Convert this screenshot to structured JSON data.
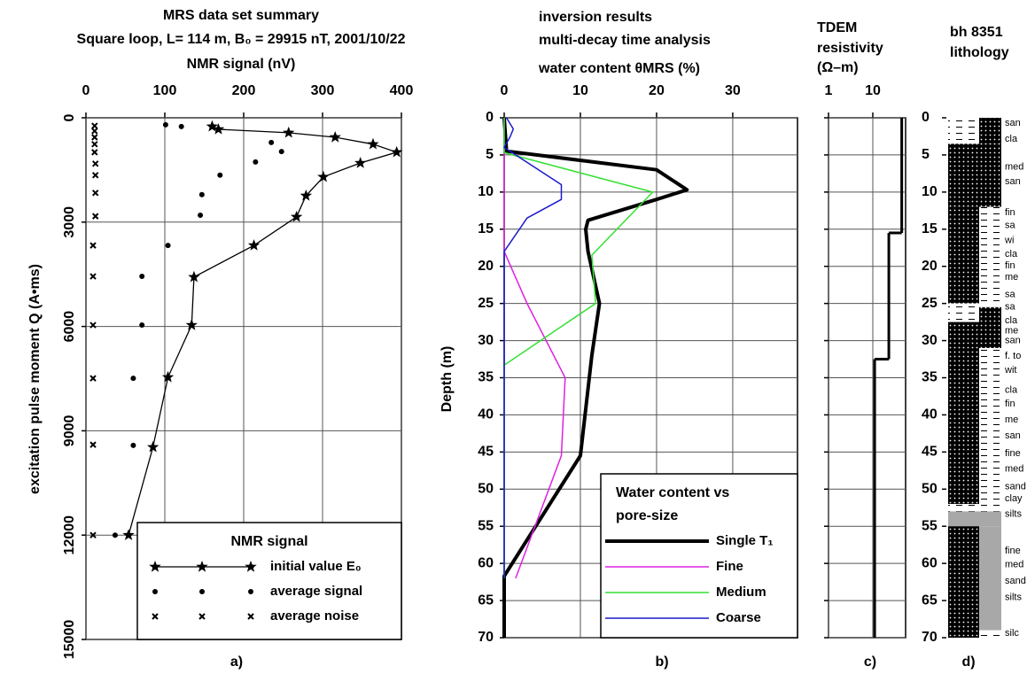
{
  "chart_data": [
    {
      "type": "scatter",
      "title": "MRS data set summary",
      "subtitle": "Square loop, L= 114 m, B₀ = 29915 nT, 2001/10/22",
      "xlabel": "NMR signal (nV)",
      "ylabel": "excitation pulse moment Q (A•ms)",
      "panel": "a)",
      "xlim": [
        0,
        400
      ],
      "xticks": [
        0,
        100,
        200,
        300,
        400
      ],
      "ylim": [
        0,
        15000
      ],
      "yticks": [
        0,
        3000,
        6000,
        9000,
        12000,
        15000
      ],
      "grid": true,
      "legend": "lower right",
      "legend_title": "NMR signal",
      "series": [
        {
          "name": "initial value E₀",
          "color": "#000000",
          "marker": "star",
          "line": true,
          "q": [
            250,
            330,
            430,
            560,
            760,
            990,
            1300,
            1700,
            2240,
            2850,
            3670,
            4580,
            5960,
            7460,
            9470,
            12000
          ],
          "values": [
            160,
            168,
            257,
            316,
            364,
            394,
            348,
            301,
            279,
            267,
            213,
            137,
            134,
            104,
            85,
            54
          ]
        },
        {
          "name": "average signal",
          "color": "#000000",
          "marker": "dot",
          "line": false,
          "q": [
            200,
            250,
            710,
            970,
            1270,
            1650,
            2210,
            2800,
            3670,
            4560,
            5960,
            7490,
            9420,
            12000
          ],
          "values": [
            101,
            121,
            235,
            248,
            215,
            170,
            147,
            145,
            104,
            71,
            71,
            60,
            60,
            37
          ]
        },
        {
          "name": "average noise",
          "color": "#000000",
          "marker": "x",
          "line": false,
          "q": [
            230,
            380,
            560,
            760,
            990,
            1320,
            1650,
            2160,
            2830,
            3670,
            4560,
            5960,
            7490,
            9400,
            12000
          ],
          "values": [
            11,
            11,
            11,
            11,
            11,
            12,
            12,
            12,
            12,
            9,
            9,
            9,
            9,
            9,
            9
          ]
        }
      ]
    },
    {
      "type": "line",
      "title": "inversion results",
      "subtitle": "multi-decay time analysis",
      "xlabel": "water content θMRS (%)",
      "ylabel": "Depth (m)",
      "panel": "b)",
      "xlim": [
        0,
        38.5
      ],
      "xticks": [
        0,
        10,
        20,
        30
      ],
      "ylim": [
        0,
        70
      ],
      "yticks": [
        0,
        5,
        10,
        15,
        20,
        25,
        30,
        35,
        40,
        45,
        50,
        55,
        60,
        65,
        70
      ],
      "grid": true,
      "legend": "lower right",
      "legend_title": [
        "Water content vs",
        "pore-size"
      ],
      "series": [
        {
          "name": "Single T₁",
          "color": "#000000",
          "width": 4,
          "depth": [
            0,
            4.5,
            7,
            9.7,
            11,
            13.8,
            15,
            18,
            25,
            32,
            45.5,
            61.7,
            70
          ],
          "values": [
            0,
            0.3,
            20,
            24,
            20,
            11,
            10.7,
            11,
            12.5,
            11.5,
            10,
            0,
            0
          ]
        },
        {
          "name": "Fine",
          "color": "#e020e0",
          "width": 1.5,
          "depth": [
            0,
            18,
            25,
            35,
            45.5,
            62
          ],
          "values": [
            0,
            0,
            3,
            8,
            7.5,
            1.5
          ]
        },
        {
          "name": "Medium",
          "color": "#33e033",
          "width": 1.5,
          "depth": [
            0,
            4.7,
            10,
            18.5,
            25,
            33.3,
            62
          ],
          "values": [
            0,
            0,
            19.5,
            11.5,
            12,
            0,
            0
          ]
        },
        {
          "name": "Coarse",
          "color": "#1a1acc",
          "width": 1.5,
          "depth": [
            0,
            1.5,
            2.5,
            4,
            9,
            11,
            13.5,
            18,
            62
          ],
          "values": [
            0.3,
            1.2,
            0.8,
            0,
            7.5,
            7.5,
            3,
            0,
            0
          ]
        }
      ]
    },
    {
      "type": "step",
      "title": "TDEM",
      "subtitle": "resistivity",
      "xlabel": "(Ω–m)",
      "panel": "c)",
      "xscale": "log",
      "xlim": [
        1,
        55
      ],
      "xticks": [
        1,
        10
      ],
      "ylim": [
        0,
        70
      ],
      "yticks": [
        0,
        5,
        10,
        15,
        20,
        25,
        30,
        35,
        40,
        45,
        50,
        55,
        60,
        65,
        70
      ],
      "grid": true,
      "color": "#000000",
      "top": [
        0,
        15.5,
        32.5
      ],
      "values": [
        45,
        23,
        11
      ]
    },
    {
      "type": "lithology",
      "title": "bh 8351",
      "subtitle": "lithology",
      "panel": "d)",
      "ylim": [
        0,
        70
      ],
      "yticks": [
        0,
        5,
        10,
        15,
        20,
        25,
        30,
        35,
        40,
        45,
        50,
        55,
        60,
        65,
        70
      ],
      "layers": [
        {
          "top": 0,
          "bottom": 3.5,
          "kind": "clay",
          "side": "left"
        },
        {
          "top": 0,
          "bottom": 3.5,
          "kind": "sand",
          "side": "right"
        },
        {
          "top": 3.5,
          "bottom": 12,
          "kind": "sand",
          "side": "full"
        },
        {
          "top": 12,
          "bottom": 25,
          "kind": "sand",
          "side": "left"
        },
        {
          "top": 12,
          "bottom": 25,
          "kind": "clay",
          "side": "right"
        },
        {
          "top": 25,
          "bottom": 27.5,
          "kind": "clay",
          "side": "left"
        },
        {
          "top": 25.5,
          "bottom": 28,
          "kind": "sand",
          "side": "right"
        },
        {
          "top": 27.5,
          "bottom": 31,
          "kind": "sand",
          "side": "full"
        },
        {
          "top": 31,
          "bottom": 52,
          "kind": "sand",
          "side": "left"
        },
        {
          "top": 31,
          "bottom": 52,
          "kind": "clay",
          "side": "right"
        },
        {
          "top": 52,
          "bottom": 53,
          "kind": "clay",
          "side": "full"
        },
        {
          "top": 53,
          "bottom": 55,
          "kind": "silt",
          "side": "full"
        },
        {
          "top": 55,
          "bottom": 70,
          "kind": "sand",
          "side": "left"
        },
        {
          "top": 55,
          "bottom": 69,
          "kind": "silt",
          "side": "right"
        },
        {
          "top": 69,
          "bottom": 70,
          "kind": "clay",
          "side": "right"
        }
      ],
      "labels": [
        {
          "text": "san",
          "depth": 0.7
        },
        {
          "text": "cla",
          "depth": 2.9
        },
        {
          "text": "med",
          "depth": 6.6
        },
        {
          "text": "san",
          "depth": 8.6
        },
        {
          "text": "fin",
          "depth": 12.8
        },
        {
          "text": "sa",
          "depth": 14.5
        },
        {
          "text": "wi",
          "depth": 16.5
        },
        {
          "text": "cla",
          "depth": 18.4
        },
        {
          "text": "fin",
          "depth": 19.9
        },
        {
          "text": "me",
          "depth": 21.5
        },
        {
          "text": "sa",
          "depth": 23.8
        },
        {
          "text": "sa",
          "depth": 25.5
        },
        {
          "text": "cla",
          "depth": 27.3
        },
        {
          "text": "me",
          "depth": 28.7
        },
        {
          "text": "san",
          "depth": 30
        },
        {
          "text": "f. to",
          "depth": 32.1
        },
        {
          "text": "wit",
          "depth": 34
        },
        {
          "text": "cla",
          "depth": 36.7
        },
        {
          "text": "fin",
          "depth": 38.5
        },
        {
          "text": "me",
          "depth": 40.7
        },
        {
          "text": "san",
          "depth": 42.8
        },
        {
          "text": "fine",
          "depth": 45.2
        },
        {
          "text": "med",
          "depth": 47.3
        },
        {
          "text": "sand",
          "depth": 49.7
        },
        {
          "text": "clay",
          "depth": 51.3
        },
        {
          "text": "silts",
          "depth": 53.4
        },
        {
          "text": "fine",
          "depth": 58.3
        },
        {
          "text": "med",
          "depth": 60.2
        },
        {
          "text": "sand",
          "depth": 62.4
        },
        {
          "text": "silts",
          "depth": 64.6
        },
        {
          "text": "silc",
          "depth": 69.4
        }
      ]
    }
  ]
}
